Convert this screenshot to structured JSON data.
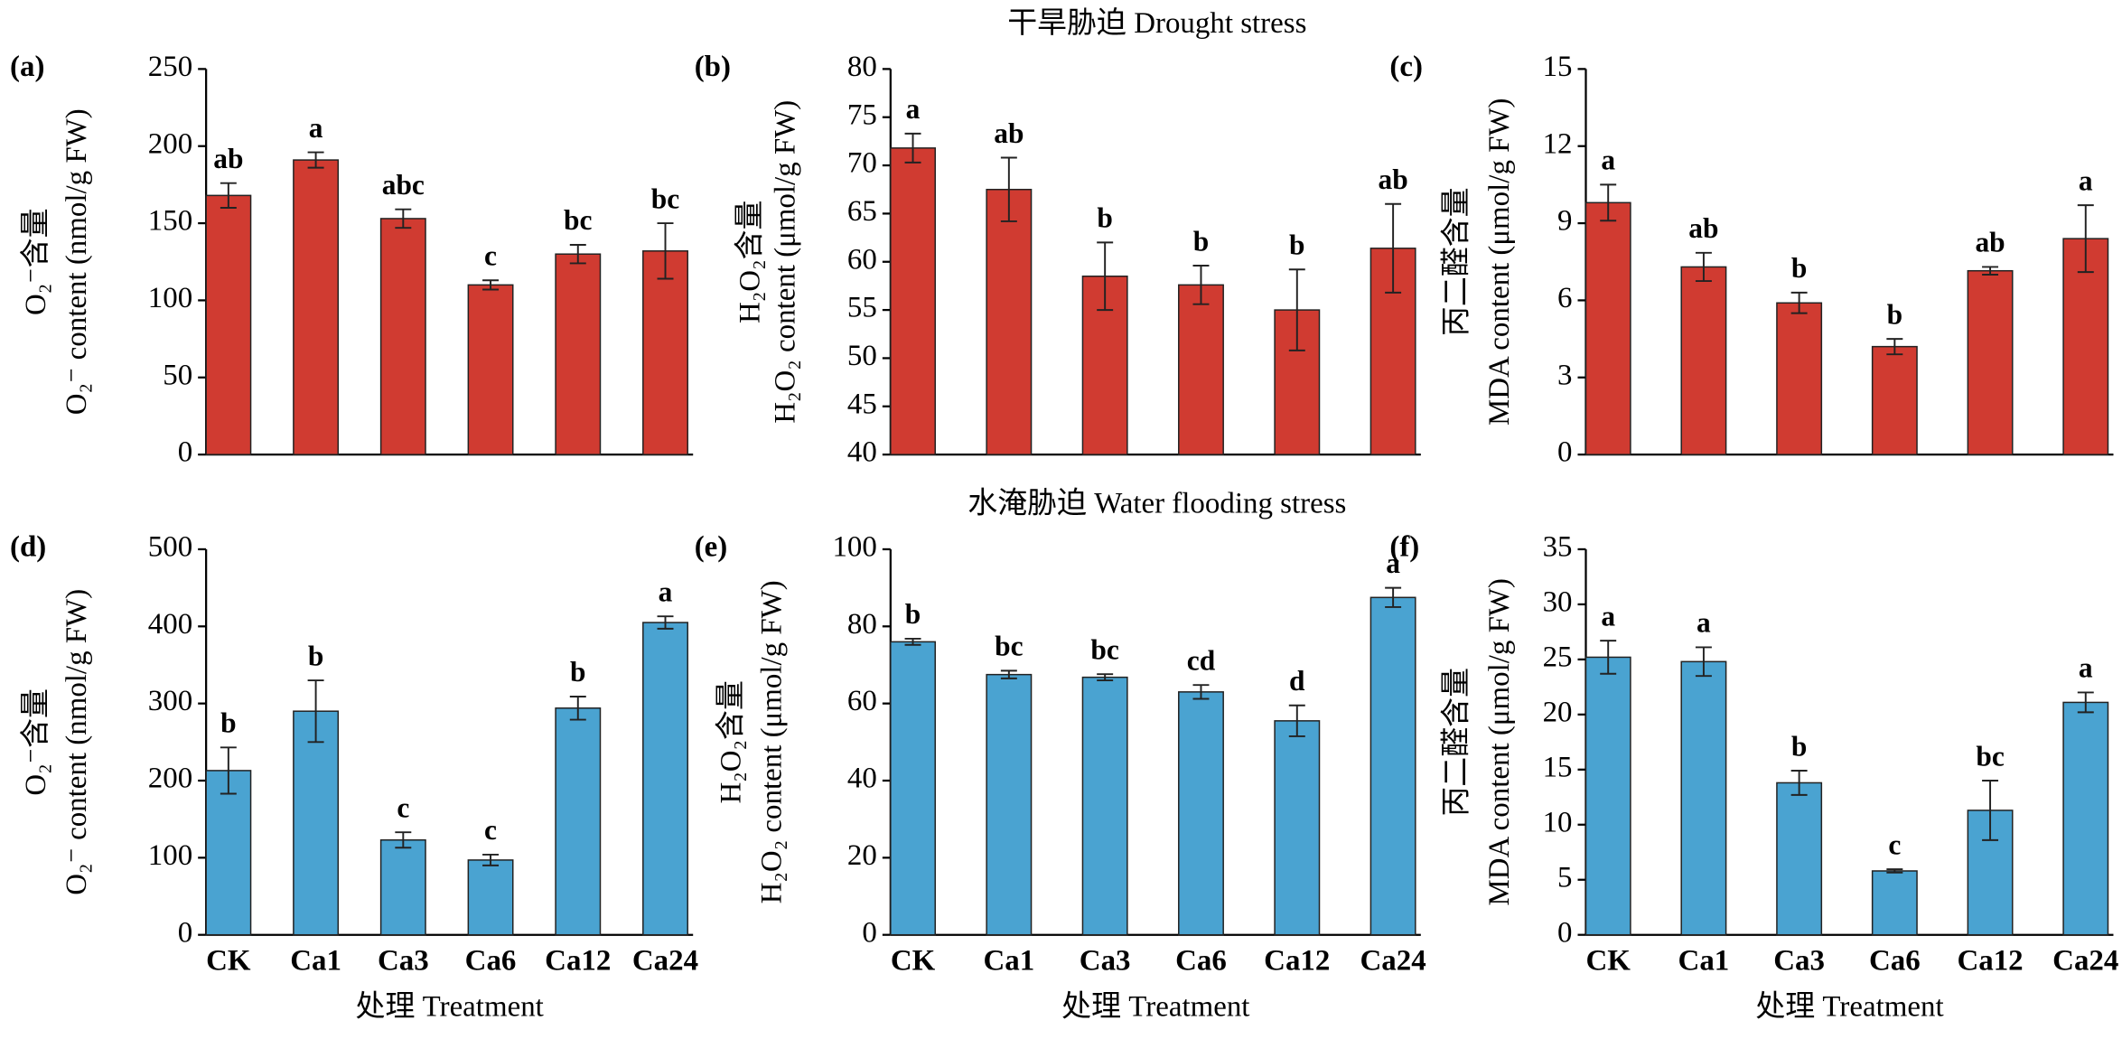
{
  "titles": [
    "干旱胁迫 Drought stress",
    "水淹胁迫 Water flooding stress"
  ],
  "chart_data": [
    {
      "type": "bar",
      "label": "(a)",
      "ylabel_cn": "O₂⁻含量",
      "ylabel": "O₂⁻ content (nmol/g FW)",
      "color": "#d03b31",
      "values": [
        168,
        191,
        153,
        110,
        130,
        132
      ],
      "errors": [
        8,
        5,
        6,
        3,
        6,
        18
      ],
      "annotations": [
        "ab",
        "a",
        "abc",
        "c",
        "bc",
        "bc"
      ],
      "ylim": [
        0,
        250
      ],
      "yticks": [
        0,
        50,
        100,
        150,
        200,
        250
      ]
    },
    {
      "type": "bar",
      "label": "(b)",
      "ylabel_cn": "H₂O₂含量",
      "ylabel": "H₂O₂ content (μmol/g FW)",
      "color": "#d03b31",
      "values": [
        71.8,
        67.5,
        58.5,
        57.6,
        55,
        61.4
      ],
      "errors": [
        1.5,
        3.3,
        3.5,
        2,
        4.2,
        4.6
      ],
      "annotations": [
        "a",
        "ab",
        "b",
        "b",
        "b",
        "ab"
      ],
      "ylim": [
        40,
        80
      ],
      "yticks": [
        40,
        45,
        50,
        55,
        60,
        65,
        70,
        75,
        80
      ]
    },
    {
      "type": "bar",
      "label": "(c)",
      "ylabel_cn": "丙二醛含量",
      "ylabel": "MDA content (μmol/g FW)",
      "color": "#d03b31",
      "values": [
        9.8,
        7.3,
        5.9,
        4.2,
        7.15,
        8.4
      ],
      "errors": [
        0.7,
        0.55,
        0.4,
        0.3,
        0.15,
        1.3
      ],
      "annotations": [
        "a",
        "ab",
        "b",
        "b",
        "ab",
        "a"
      ],
      "ylim": [
        0,
        15
      ],
      "yticks": [
        0,
        3,
        6,
        9,
        12,
        15
      ]
    },
    {
      "type": "bar",
      "label": "(d)",
      "ylabel_cn": "O₂⁻含量",
      "ylabel": "O₂⁻ content (nmol/g FW)",
      "color": "#4aa3d1",
      "categories": [
        "CK",
        "Ca1",
        "Ca3",
        "Ca6",
        "Ca12",
        "Ca24"
      ],
      "xlabel": "处理 Treatment",
      "values": [
        213,
        290,
        123,
        97,
        294,
        405
      ],
      "errors": [
        30,
        40,
        10,
        7,
        15,
        8
      ],
      "annotations": [
        "b",
        "b",
        "c",
        "c",
        "b",
        "a"
      ],
      "ylim": [
        0,
        500
      ],
      "yticks": [
        0,
        100,
        200,
        300,
        400,
        500
      ]
    },
    {
      "type": "bar",
      "label": "(e)",
      "ylabel_cn": "H₂O₂含量",
      "ylabel": "H₂O₂ content (μmol/g FW)",
      "color": "#4aa3d1",
      "categories": [
        "CK",
        "Ca1",
        "Ca3",
        "Ca6",
        "Ca12",
        "Ca24"
      ],
      "xlabel": "处理 Treatment",
      "values": [
        76,
        67.5,
        66.8,
        63,
        55.5,
        87.5
      ],
      "errors": [
        0.8,
        1,
        0.8,
        1.8,
        4,
        2.5
      ],
      "annotations": [
        "b",
        "bc",
        "bc",
        "cd",
        "d",
        "a"
      ],
      "ylim": [
        0,
        100
      ],
      "yticks": [
        0,
        20,
        40,
        60,
        80,
        100
      ]
    },
    {
      "type": "bar",
      "label": "(f)",
      "ylabel_cn": "丙二醛含量",
      "ylabel": "MDA content (μmol/g FW)",
      "color": "#4aa3d1",
      "categories": [
        "CK",
        "Ca1",
        "Ca3",
        "Ca6",
        "Ca12",
        "Ca24"
      ],
      "xlabel": "处理 Treatment",
      "values": [
        25.2,
        24.8,
        13.8,
        5.8,
        11.3,
        21.1
      ],
      "errors": [
        1.5,
        1.3,
        1.1,
        0.15,
        2.7,
        0.9
      ],
      "annotations": [
        "a",
        "a",
        "b",
        "c",
        "bc",
        "a"
      ],
      "ylim": [
        0,
        35
      ],
      "yticks": [
        0,
        5,
        10,
        15,
        20,
        25,
        30,
        35
      ]
    }
  ]
}
